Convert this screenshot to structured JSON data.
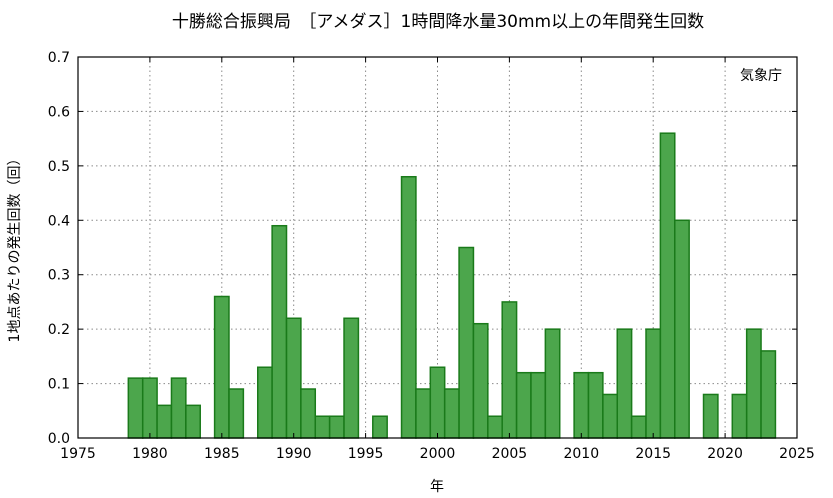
{
  "chart_data": {
    "type": "bar",
    "title": "十勝総合振興局　［アメダス］1時間降水量30mm以上の年間発生回数",
    "xlabel": "年",
    "ylabel": "1地点あたりの発生回数（回）",
    "annotation": "気象庁",
    "xlim": [
      1975,
      2025
    ],
    "ylim": [
      0,
      0.7
    ],
    "x_ticks": [
      "1975",
      "1980",
      "1985",
      "1990",
      "1995",
      "2000",
      "2005",
      "2010",
      "2015",
      "2020",
      "2025"
    ],
    "y_ticks": [
      "0.0",
      "0.1",
      "0.2",
      "0.3",
      "0.4",
      "0.5",
      "0.6",
      "0.7"
    ],
    "grid": true,
    "bar_fill": "#4ca64c",
    "bar_edge": "#1a7a1a",
    "x": [
      1979,
      1980,
      1981,
      1982,
      1983,
      1985,
      1986,
      1988,
      1989,
      1990,
      1991,
      1992,
      1993,
      1994,
      1996,
      1998,
      1999,
      2000,
      2001,
      2002,
      2003,
      2004,
      2005,
      2006,
      2007,
      2008,
      2010,
      2011,
      2012,
      2013,
      2014,
      2015,
      2016,
      2017,
      2019,
      2021,
      2022,
      2023
    ],
    "values": [
      0.11,
      0.11,
      0.06,
      0.11,
      0.06,
      0.26,
      0.09,
      0.13,
      0.39,
      0.22,
      0.09,
      0.04,
      0.04,
      0.22,
      0.04,
      0.48,
      0.09,
      0.13,
      0.09,
      0.35,
      0.21,
      0.04,
      0.25,
      0.12,
      0.12,
      0.2,
      0.12,
      0.12,
      0.08,
      0.2,
      0.04,
      0.2,
      0.56,
      0.4,
      0.08,
      0.08,
      0.2,
      0.16
    ]
  }
}
